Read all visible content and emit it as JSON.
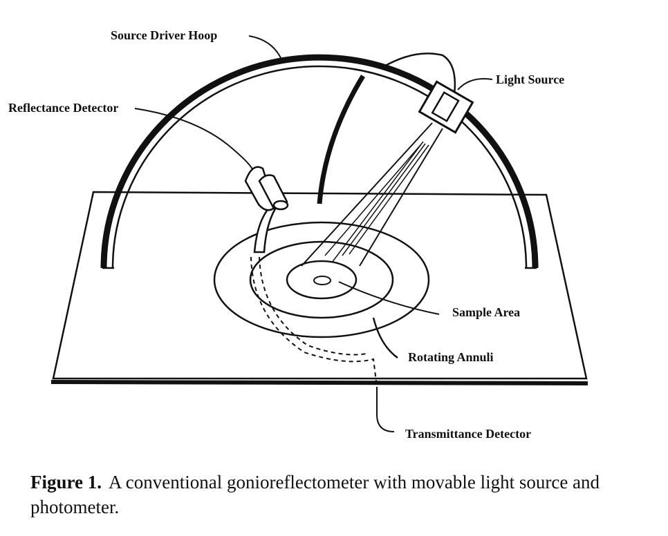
{
  "figure": {
    "labels": {
      "source_driver_hoop": "Source Driver Hoop",
      "reflectance_detector": "Reflectance Detector",
      "light_source": "Light Source",
      "sample_area": "Sample Area",
      "rotating_annuli": "Rotating Annuli",
      "transmittance_detector": "Transmittance Detector"
    }
  },
  "caption": {
    "figure_number": "Figure 1.",
    "text": "A conventional gonioreflectometer with movable light source and photometer."
  }
}
